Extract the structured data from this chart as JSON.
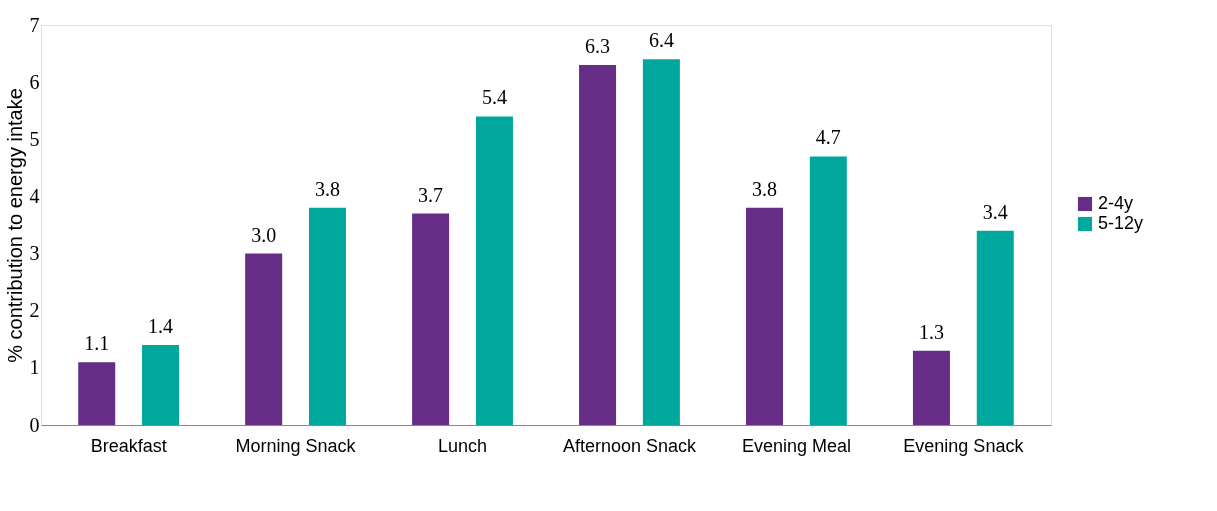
{
  "chart_data": {
    "type": "bar",
    "ylabel": "% contribution to energy intake",
    "categories": [
      "Breakfast",
      "Morning Snack",
      "Lunch",
      "Afternoon Snack",
      "Evening Meal",
      "Evening Snack"
    ],
    "series": [
      {
        "name": "2-4y",
        "color": "#662d86",
        "values": [
          1.1,
          3.0,
          3.7,
          6.3,
          3.8,
          1.3
        ],
        "value_labels": [
          "1.1",
          "3.0",
          "3.7",
          "6.3",
          "3.8",
          "1.3"
        ]
      },
      {
        "name": "5-12y",
        "color": "#00a79d",
        "values": [
          1.4,
          3.8,
          5.4,
          6.4,
          4.7,
          3.4
        ],
        "value_labels": [
          "1.4",
          "3.8",
          "5.4",
          "6.4",
          "4.7",
          "3.4"
        ]
      }
    ],
    "ylim": [
      0,
      7
    ],
    "yticks": [
      0,
      1,
      2,
      3,
      4,
      5,
      6,
      7
    ],
    "grid": false,
    "legend": "right"
  }
}
